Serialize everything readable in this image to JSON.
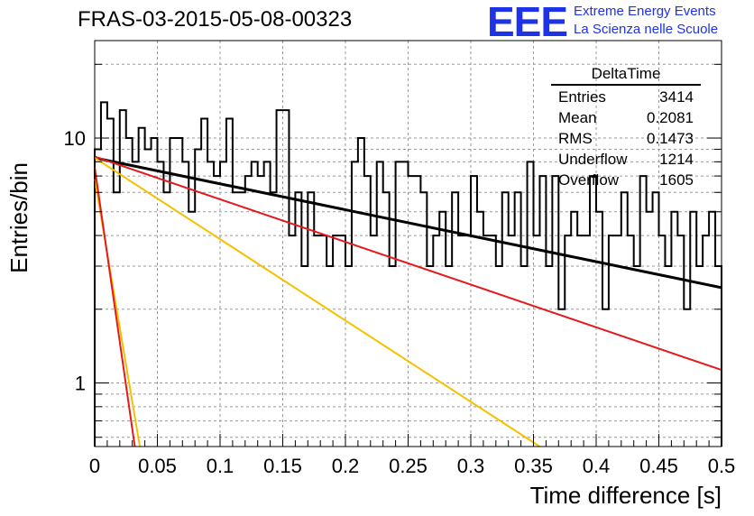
{
  "header": {
    "title": "FRAS-03-2015-05-08-00323",
    "logo_mark": "EEE",
    "logo_line1": "Extreme Energy Events",
    "logo_line2": "La Scienza nelle Scuole"
  },
  "colors": {
    "histogram": "#000000",
    "fit_black": "#000000",
    "fit_red": "#e41a1c",
    "fit_yellow": "#f5c000",
    "grid": "#9a9a9a",
    "logo": "#1e33e6"
  },
  "stats": {
    "name": "DeltaTime",
    "rows": [
      {
        "label": "Entries",
        "value": "3414"
      },
      {
        "label": "Mean",
        "value": "0.2081"
      },
      {
        "label": "RMS",
        "value": "0.1473"
      },
      {
        "label": "Underflow",
        "value": "1214"
      },
      {
        "label": "Overflow",
        "value": "1605"
      }
    ]
  },
  "chart_data": {
    "type": "line",
    "title": "FRAS-03-2015-05-08-00323",
    "xlabel": "Time difference [s]",
    "ylabel": "Entries/bin",
    "xlim": [
      0,
      0.5
    ],
    "ylim": [
      0.55,
      25
    ],
    "yscale": "log",
    "grid": true,
    "x_ticks": [
      "0",
      "0.05",
      "0.1",
      "0.15",
      "0.2",
      "0.25",
      "0.3",
      "0.35",
      "0.4",
      "0.45",
      "0.5"
    ],
    "y_ticks": [
      "1",
      "10"
    ],
    "histogram": {
      "name": "DeltaTime",
      "bin_width": 0.005,
      "counts": [
        9,
        14,
        12,
        6,
        13,
        10,
        8,
        11,
        9,
        10,
        8,
        6,
        10,
        10,
        8,
        5,
        9,
        12,
        8,
        7,
        8,
        12,
        6,
        6,
        7,
        8,
        7,
        8,
        6,
        13,
        13,
        4,
        6,
        3,
        6,
        4,
        4,
        3,
        4,
        4,
        3,
        8,
        10,
        7,
        4,
        8,
        6,
        3,
        8,
        8,
        7,
        7,
        6,
        3,
        4,
        5,
        3,
        6,
        4,
        4,
        7,
        5,
        4,
        4,
        3,
        6,
        4,
        6,
        3,
        8,
        4,
        7,
        3,
        7,
        2,
        4,
        5,
        4,
        4,
        7,
        5,
        2,
        4,
        4,
        6,
        4,
        3,
        7,
        5,
        6,
        4,
        3,
        5,
        4,
        2,
        5,
        3,
        4,
        5,
        3
      ],
      "min_count": 0.55
    },
    "series": [
      {
        "color": "#000000",
        "x": [
          0.0,
          0.5
        ],
        "y": [
          8.3,
          2.45
        ]
      },
      {
        "color": "#e41a1c",
        "x": [
          0.0,
          0.5
        ],
        "y": [
          8.4,
          1.13
        ]
      },
      {
        "color": "#f5c000",
        "x": [
          0.0,
          0.355
        ],
        "y": [
          8.3,
          0.55
        ]
      },
      {
        "color": "#f5c000",
        "x": [
          0.0,
          0.036
        ],
        "y": [
          6.8,
          0.55
        ]
      },
      {
        "color": "#e41a1c",
        "x": [
          0.0,
          0.032
        ],
        "y": [
          7.6,
          0.55
        ]
      }
    ]
  }
}
